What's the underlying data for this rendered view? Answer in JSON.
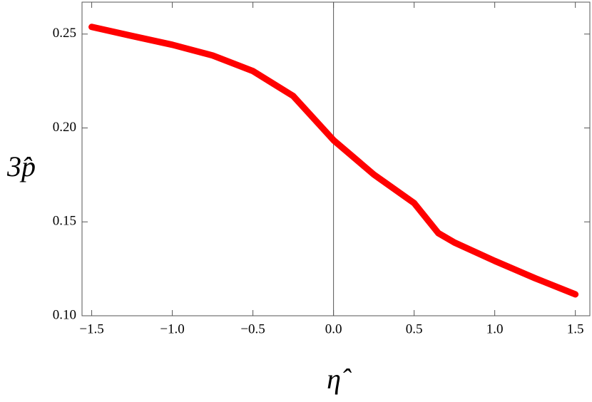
{
  "chart_data": {
    "type": "line",
    "xlabel": "η̂",
    "ylabel": "3p̂",
    "x": [
      -1.5,
      -1.25,
      -1.0,
      -0.75,
      -0.5,
      -0.25,
      0.0,
      0.25,
      0.5,
      0.65,
      0.75,
      1.0,
      1.25,
      1.5
    ],
    "series": [
      {
        "color": "#ff0000",
        "values": [
          0.2538,
          0.249,
          0.2443,
          0.2386,
          0.2303,
          0.217,
          0.1935,
          0.1752,
          0.16,
          0.144,
          0.139,
          0.1292,
          0.12,
          0.1114
        ]
      }
    ],
    "xlim": [
      -1.56,
      1.59
    ],
    "ylim": [
      0.1,
      0.267
    ],
    "xticks": [
      {
        "value": -1.5,
        "label": "−1.5"
      },
      {
        "value": -1.0,
        "label": "−1.0"
      },
      {
        "value": -0.5,
        "label": "−0.5"
      },
      {
        "value": 0.0,
        "label": "0.0"
      },
      0.5,
      {
        "value": 1.0,
        "label": "1.0"
      },
      1.5
    ],
    "yticks": [
      {
        "value": 0.1,
        "label": "0.10"
      },
      0.15,
      {
        "value": 0.2,
        "label": "0.20"
      },
      0.25
    ]
  }
}
